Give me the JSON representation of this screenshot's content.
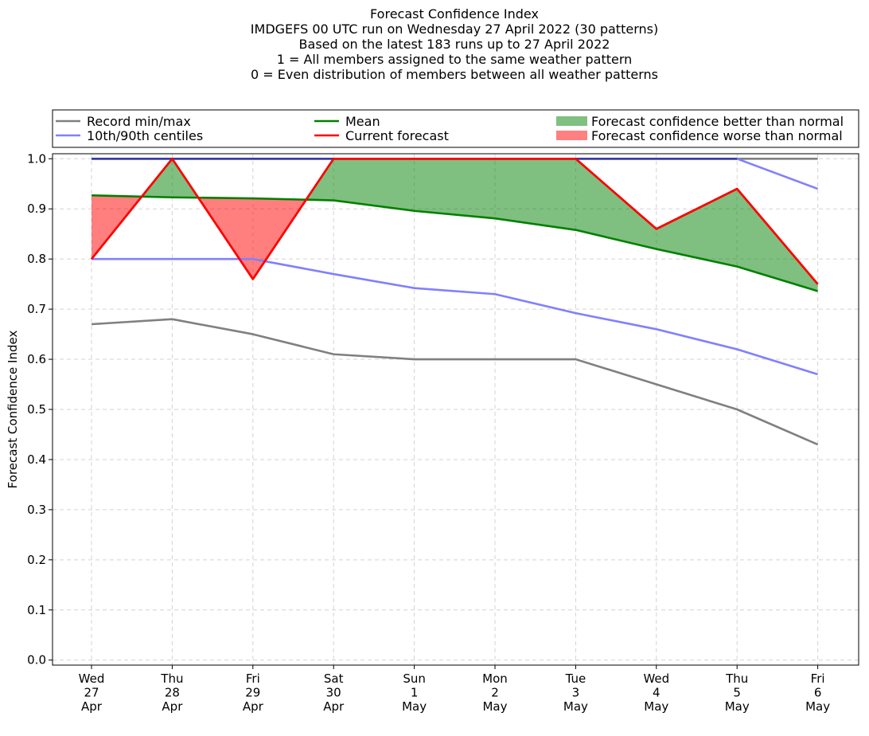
{
  "chart_data": {
    "type": "line",
    "title_lines": [
      "Forecast Confidence Index",
      "IMDGEFS 00 UTC run on Wednesday 27 April 2022 (30 patterns)",
      "Based on the latest 183 runs up to 27 April 2022",
      "1 = All members assigned to the same weather pattern",
      "0 = Even distribution of members between all weather patterns"
    ],
    "ylabel": "Forecast Confidence Index",
    "xlabel": "",
    "ylim": [
      -0.01,
      1.01
    ],
    "yticks": [
      "0.0",
      "0.1",
      "0.2",
      "0.3",
      "0.4",
      "0.5",
      "0.6",
      "0.7",
      "0.8",
      "0.9",
      "1.0"
    ],
    "grid": true,
    "legend_position": "top, above plot",
    "categories": [
      [
        "Wed",
        "27",
        "Apr"
      ],
      [
        "Thu",
        "28",
        "Apr"
      ],
      [
        "Fri",
        "29",
        "Apr"
      ],
      [
        "Sat",
        "30",
        "Apr"
      ],
      [
        "Sun",
        "1",
        "May"
      ],
      [
        "Mon",
        "2",
        "May"
      ],
      [
        "Tue",
        "3",
        "May"
      ],
      [
        "Wed",
        "4",
        "May"
      ],
      [
        "Thu",
        "5",
        "May"
      ],
      [
        "Fri",
        "6",
        "May"
      ]
    ],
    "series": [
      {
        "name": "Record max",
        "legend": "Record min/max",
        "color": "#808080",
        "values": [
          1.0,
          1.0,
          1.0,
          1.0,
          1.0,
          1.0,
          1.0,
          1.0,
          1.0,
          1.0
        ]
      },
      {
        "name": "Record min",
        "legend": "Record min/max",
        "color": "#808080",
        "values": [
          0.67,
          0.68,
          0.65,
          0.61,
          0.6,
          0.6,
          0.6,
          0.55,
          0.5,
          0.43
        ]
      },
      {
        "name": "90th centile",
        "legend": "10th/90th centiles",
        "color": "#8080ff",
        "values": [
          1.0,
          1.0,
          1.0,
          1.0,
          1.0,
          1.0,
          1.0,
          1.0,
          1.0,
          0.94
        ]
      },
      {
        "name": "10th centile",
        "legend": "10th/90th centiles",
        "color": "#8080ff",
        "values": [
          0.8,
          0.8,
          0.8,
          0.77,
          0.742,
          0.73,
          0.692,
          0.66,
          0.62,
          0.57
        ]
      },
      {
        "name": "Mean",
        "legend": "Mean",
        "color": "#008000",
        "values": [
          0.927,
          0.923,
          0.921,
          0.917,
          0.896,
          0.881,
          0.858,
          0.82,
          0.785,
          0.736
        ]
      },
      {
        "name": "Current forecast",
        "legend": "Current forecast",
        "color": "#ff0000",
        "values": [
          0.8,
          1.0,
          0.76,
          1.0,
          1.0,
          1.0,
          1.0,
          0.86,
          0.94,
          0.75
        ]
      }
    ],
    "fill_between": {
      "better": {
        "label": "Forecast confidence better than normal",
        "color": "#008000",
        "opacity": 0.5
      },
      "worse": {
        "label": "Forecast confidence worse than normal",
        "color": "#ff0000",
        "opacity": 0.5
      }
    },
    "legend_entries": [
      {
        "label": "Record min/max",
        "kind": "line",
        "color": "#808080"
      },
      {
        "label": "10th/90th centiles",
        "kind": "line",
        "color": "#8080ff"
      },
      {
        "label": "Mean",
        "kind": "line",
        "color": "#008000"
      },
      {
        "label": "Current forecast",
        "kind": "line",
        "color": "#ff0000"
      },
      {
        "label": "Forecast confidence better than normal",
        "kind": "patch",
        "color": "#80c080"
      },
      {
        "label": "Forecast confidence worse than normal",
        "kind": "patch",
        "color": "#ff8080"
      }
    ]
  }
}
